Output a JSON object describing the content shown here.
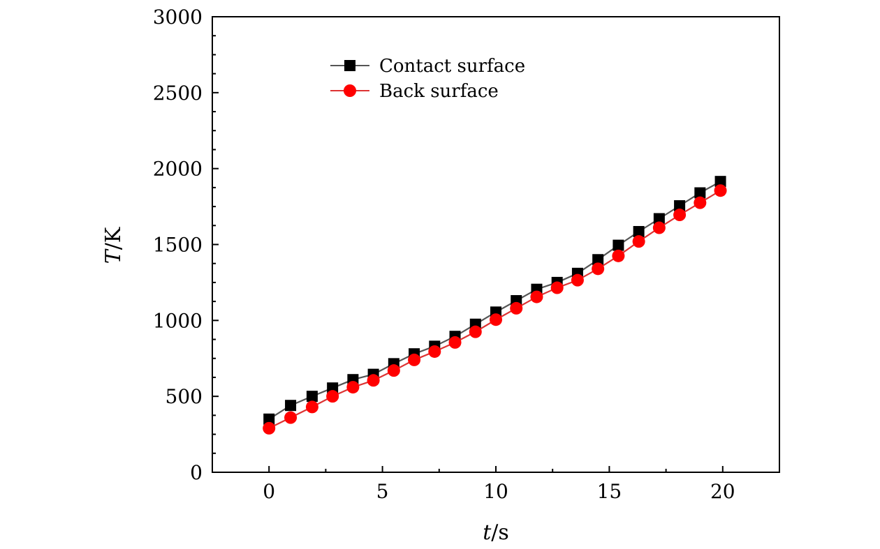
{
  "chart_data": {
    "type": "line",
    "xlabel": {
      "var": "t",
      "unit": "/s"
    },
    "ylabel": {
      "var": "T",
      "unit": "/K"
    },
    "xlim": [
      -2.5,
      22.5
    ],
    "ylim": [
      0,
      3000
    ],
    "x_ticks": [
      0,
      5,
      10,
      15,
      20
    ],
    "y_ticks": [
      0,
      500,
      1000,
      1500,
      2000,
      2500,
      3000
    ],
    "grid": false,
    "legend_position": "top-center",
    "x": [
      0,
      0.95,
      1.9,
      2.8,
      3.7,
      4.6,
      5.5,
      6.4,
      7.3,
      8.2,
      9.1,
      10.0,
      10.9,
      11.8,
      12.7,
      13.6,
      14.5,
      15.4,
      16.3,
      17.2,
      18.1,
      19.0,
      19.9
    ],
    "series": [
      {
        "name": "Contact surface",
        "marker": "square",
        "color": "#000000",
        "line_color": "#555555",
        "values": [
          350,
          440,
          500,
          555,
          610,
          645,
          715,
          780,
          830,
          895,
          975,
          1055,
          1130,
          1205,
          1250,
          1310,
          1400,
          1495,
          1585,
          1670,
          1755,
          1840,
          1915
        ]
      },
      {
        "name": "Back surface",
        "marker": "circle",
        "color": "#ff0000",
        "line_color": "#dd3333",
        "values": [
          290,
          360,
          430,
          500,
          560,
          605,
          670,
          740,
          795,
          855,
          925,
          1005,
          1080,
          1155,
          1215,
          1265,
          1340,
          1425,
          1520,
          1610,
          1695,
          1775,
          1855
        ]
      }
    ]
  }
}
